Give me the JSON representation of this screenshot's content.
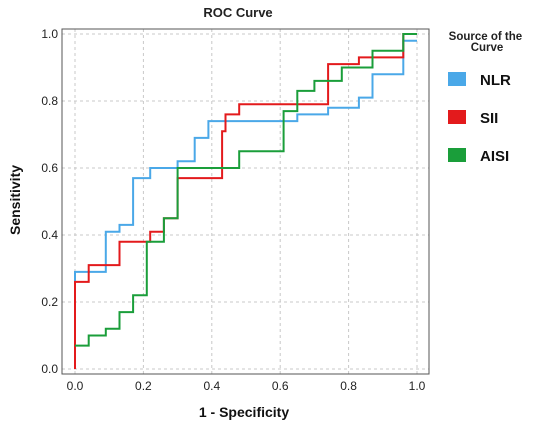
{
  "chart_data": {
    "type": "line",
    "title": "ROC Curve",
    "xlabel": "1 - Specificity",
    "ylabel": "Sensitivity",
    "xlim": [
      0.0,
      1.0
    ],
    "ylim": [
      0.0,
      1.0
    ],
    "xticks": [
      "0.0",
      "0.2",
      "0.4",
      "0.6",
      "0.8",
      "1.0"
    ],
    "yticks": [
      "0.0",
      "0.2",
      "0.4",
      "0.6",
      "0.8",
      "1.0"
    ],
    "grid": true,
    "legend": {
      "title": "Source of the Curve",
      "position": "right"
    },
    "series": [
      {
        "name": "NLR",
        "color": "#4aa8e8",
        "points": [
          [
            0,
            0
          ],
          [
            0,
            0.29
          ],
          [
            0.09,
            0.29
          ],
          [
            0.09,
            0.41
          ],
          [
            0.13,
            0.41
          ],
          [
            0.13,
            0.43
          ],
          [
            0.17,
            0.43
          ],
          [
            0.17,
            0.57
          ],
          [
            0.22,
            0.57
          ],
          [
            0.22,
            0.6
          ],
          [
            0.3,
            0.6
          ],
          [
            0.3,
            0.62
          ],
          [
            0.35,
            0.62
          ],
          [
            0.35,
            0.69
          ],
          [
            0.39,
            0.69
          ],
          [
            0.39,
            0.74
          ],
          [
            0.57,
            0.74
          ],
          [
            0.65,
            0.74
          ],
          [
            0.65,
            0.76
          ],
          [
            0.74,
            0.76
          ],
          [
            0.74,
            0.78
          ],
          [
            0.83,
            0.78
          ],
          [
            0.83,
            0.81
          ],
          [
            0.87,
            0.81
          ],
          [
            0.87,
            0.88
          ],
          [
            0.96,
            0.88
          ],
          [
            0.96,
            0.98
          ],
          [
            1.0,
            0.98
          ]
        ]
      },
      {
        "name": "SII",
        "color": "#e31a1c",
        "points": [
          [
            0,
            0
          ],
          [
            0,
            0.26
          ],
          [
            0.04,
            0.26
          ],
          [
            0.04,
            0.31
          ],
          [
            0.13,
            0.31
          ],
          [
            0.13,
            0.38
          ],
          [
            0.22,
            0.38
          ],
          [
            0.22,
            0.41
          ],
          [
            0.26,
            0.41
          ],
          [
            0.26,
            0.45
          ],
          [
            0.3,
            0.45
          ],
          [
            0.3,
            0.57
          ],
          [
            0.43,
            0.57
          ],
          [
            0.43,
            0.71
          ],
          [
            0.44,
            0.71
          ],
          [
            0.44,
            0.76
          ],
          [
            0.48,
            0.76
          ],
          [
            0.48,
            0.79
          ],
          [
            0.74,
            0.79
          ],
          [
            0.74,
            0.91
          ],
          [
            0.83,
            0.91
          ],
          [
            0.83,
            0.93
          ],
          [
            0.96,
            0.93
          ],
          [
            0.96,
            1.0
          ],
          [
            1.0,
            1.0
          ]
        ]
      },
      {
        "name": "AISI",
        "color": "#1a9e3a",
        "points": [
          [
            0,
            0.07
          ],
          [
            0.04,
            0.07
          ],
          [
            0.04,
            0.1
          ],
          [
            0.09,
            0.1
          ],
          [
            0.09,
            0.12
          ],
          [
            0.13,
            0.12
          ],
          [
            0.13,
            0.17
          ],
          [
            0.17,
            0.17
          ],
          [
            0.17,
            0.22
          ],
          [
            0.21,
            0.22
          ],
          [
            0.21,
            0.38
          ],
          [
            0.26,
            0.38
          ],
          [
            0.26,
            0.45
          ],
          [
            0.3,
            0.45
          ],
          [
            0.3,
            0.6
          ],
          [
            0.48,
            0.6
          ],
          [
            0.48,
            0.65
          ],
          [
            0.61,
            0.65
          ],
          [
            0.61,
            0.77
          ],
          [
            0.65,
            0.77
          ],
          [
            0.65,
            0.83
          ],
          [
            0.7,
            0.83
          ],
          [
            0.7,
            0.86
          ],
          [
            0.78,
            0.86
          ],
          [
            0.78,
            0.9
          ],
          [
            0.87,
            0.9
          ],
          [
            0.87,
            0.95
          ],
          [
            0.96,
            0.95
          ],
          [
            0.96,
            1.0
          ],
          [
            1.0,
            1.0
          ]
        ]
      }
    ]
  }
}
